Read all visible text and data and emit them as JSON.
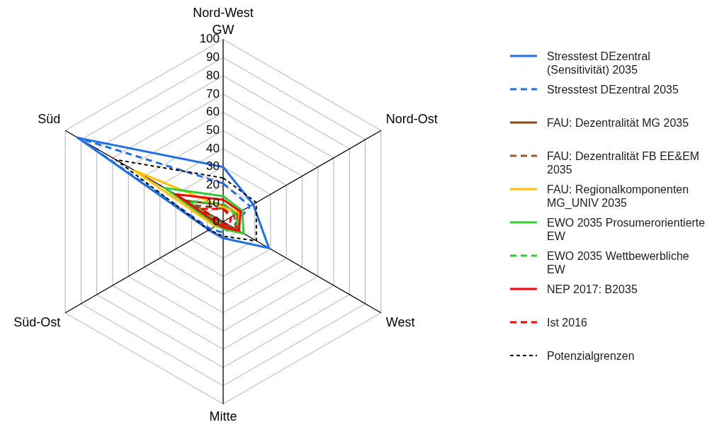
{
  "chart_data": {
    "type": "radar",
    "ylabel": "GW",
    "categories": [
      "Nord-West",
      "Nord-Ost",
      "West",
      "Mitte",
      "Süd-Ost",
      "Süd"
    ],
    "ylim": [
      0,
      100
    ],
    "yticks": [
      0,
      10,
      20,
      30,
      40,
      50,
      60,
      70,
      80,
      90,
      100
    ],
    "grid": true,
    "legend": "right",
    "marker": "none",
    "series": [
      {
        "name": "Stresstest DEzentral (Sensitivität) 2035",
        "color": "#1f6fe8",
        "line_style": "solid",
        "values": [
          30,
          19,
          29,
          9,
          9,
          92
        ]
      },
      {
        "name": "Stresstest DEzentral 2035",
        "color": "#1f6fe8",
        "line_style": "dashed",
        "values": [
          21,
          17,
          6,
          6,
          8,
          92
        ]
      },
      {
        "name": "FAU: Dezentralität MG 2035",
        "color": "#8b4513",
        "line_style": "solid",
        "values": [
          9,
          9,
          9,
          2,
          2,
          23
        ]
      },
      {
        "name": "FAU: Dezentralität FB EE&EM 2035",
        "color": "#a0522d",
        "line_style": "dashed",
        "values": [
          7,
          7,
          8,
          1,
          1,
          18
        ]
      },
      {
        "name": "FAU: Regionalkomponenten MG_UNIV 2035",
        "color": "#ffc000",
        "line_style": "solid",
        "values": [
          8,
          10,
          10,
          3,
          5,
          56
        ]
      },
      {
        "name": "EWO 2035 Prosumerorientierte EW",
        "color": "#33cc33",
        "line_style": "solid",
        "values": [
          14,
          12,
          13,
          4,
          4,
          37
        ]
      },
      {
        "name": "EWO 2035 Wettbewerbliche EW",
        "color": "#33cc33",
        "line_style": "dashed",
        "values": [
          10,
          8,
          10,
          3,
          2,
          22
        ]
      },
      {
        "name": "NEP 2017: B2035",
        "color": "#ff0000",
        "line_style": "solid",
        "values": [
          12,
          11,
          10,
          3,
          3,
          30
        ]
      },
      {
        "name": "Ist 2016",
        "color": "#ff0000",
        "line_style": "dashed",
        "values": [
          7,
          5,
          4,
          1,
          1,
          14
        ]
      },
      {
        "name": "Potenzialgrenzen",
        "color": "#000000",
        "line_style": "dotted",
        "values": [
          24,
          21,
          21,
          8,
          9,
          68
        ]
      }
    ]
  }
}
